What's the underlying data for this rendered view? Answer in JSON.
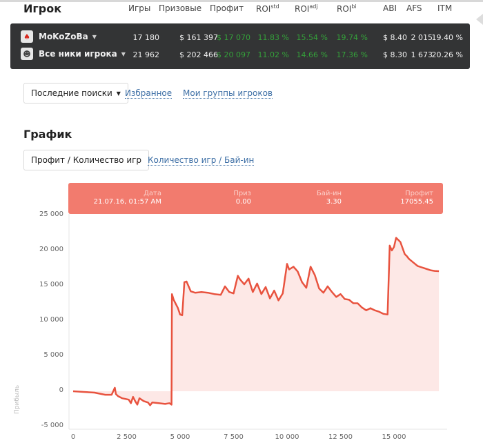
{
  "header": {
    "title": "Игрок",
    "columns": [
      {
        "label": "Игры",
        "sup": ""
      },
      {
        "label": "Призовые",
        "sup": ""
      },
      {
        "label": "Профит",
        "sup": ""
      },
      {
        "label": "ROI",
        "sup": "std"
      },
      {
        "label": "ROI",
        "sup": "adj"
      },
      {
        "label": "ROI",
        "sup": "bi"
      },
      {
        "label": "ABI",
        "sup": ""
      },
      {
        "label": "AFS",
        "sup": ""
      },
      {
        "label": "ITM",
        "sup": ""
      }
    ]
  },
  "players": [
    {
      "nick": "MoKoZoBa",
      "icon": "pokerstars-icon",
      "games": "17 180",
      "prizes": "$ 161 397",
      "profit": "$ 17 070",
      "roi_std": "11.83 %",
      "roi_adj": "15.54 %",
      "roi_bi": "19.74 %",
      "abi": "$ 8.40",
      "afs": "2 015",
      "itm": "19.40 %"
    },
    {
      "nick": "Все ники игрока",
      "icon": "group-icon",
      "games": "21 962",
      "prizes": "$ 202 466",
      "profit": "$ 20 097",
      "roi_std": "11.02 %",
      "roi_adj": "14.66 %",
      "roi_bi": "17.36 %",
      "abi": "$ 8.30",
      "afs": "1 673",
      "itm": "20.26 %"
    }
  ],
  "nav": {
    "recent_searches": "Последние поиски",
    "favorites": "Избранное",
    "my_groups": "Мои группы игроков"
  },
  "graph": {
    "title": "График",
    "tab_active": "Профит / Количество игр",
    "tab_other": "Количество игр / Бай-ин"
  },
  "tooltip": {
    "date_label": "Дата",
    "date_value": "21.07.16, 01:57 AM",
    "prize_label": "Приз",
    "prize_value": "0.00",
    "buyin_label": "Бай-ин",
    "buyin_value": "3.30",
    "profit_label": "Профит",
    "profit_value": "17055.45"
  },
  "colors": {
    "panel_bg": "#333435",
    "profit_green": "#34a13a",
    "line": "#e8533f",
    "area": "#fde8e6",
    "tooltip_bg": "#f27b6e",
    "link": "#3c6ea5"
  },
  "chart_data": {
    "type": "area",
    "title": "",
    "xlabel": "",
    "ylabel": "Прибыль",
    "xlim": [
      0,
      17180
    ],
    "ylim": [
      -5000,
      25000
    ],
    "x_ticks": [
      "0",
      "2 500",
      "5 000",
      "7 500",
      "10 000",
      "12 500",
      "15 000"
    ],
    "y_ticks": [
      "25 000",
      "20 000",
      "15 000",
      "10 000",
      "5 000",
      "0",
      "-5 000"
    ],
    "grid": false,
    "series": [
      {
        "name": "Профит",
        "x": [
          0,
          500,
          1000,
          1500,
          1800,
          1950,
          2000,
          2100,
          2300,
          2600,
          2700,
          2800,
          2900,
          3000,
          3100,
          3300,
          3500,
          3600,
          3700,
          4000,
          4300,
          4500,
          4600,
          4620,
          4700,
          4900,
          5000,
          5100,
          5200,
          5300,
          5500,
          5700,
          6000,
          6300,
          6600,
          6900,
          7100,
          7300,
          7500,
          7700,
          7800,
          8000,
          8200,
          8400,
          8600,
          8800,
          9000,
          9200,
          9400,
          9600,
          9800,
          10000,
          10100,
          10300,
          10500,
          10700,
          10900,
          11100,
          11300,
          11500,
          11700,
          11900,
          12100,
          12300,
          12500,
          12700,
          12900,
          13100,
          13300,
          13500,
          13700,
          13900,
          14100,
          14300,
          14500,
          14700,
          14800,
          14900,
          15000,
          15100,
          15300,
          15500,
          15600,
          15700,
          15900,
          16100,
          16300,
          16500,
          16700,
          16900,
          17100
        ],
        "y": [
          0,
          -100,
          -200,
          -500,
          -500,
          500,
          -400,
          -700,
          -1000,
          -1200,
          -1700,
          -800,
          -1400,
          -1900,
          -1000,
          -1400,
          -1600,
          -2000,
          -1600,
          -1700,
          -1800,
          -1700,
          -1900,
          13800,
          13000,
          11800,
          10900,
          10800,
          15500,
          15600,
          14200,
          14000,
          14100,
          14000,
          13800,
          13700,
          14900,
          14100,
          13900,
          16400,
          15900,
          15200,
          16000,
          14100,
          15300,
          13800,
          14800,
          13200,
          14300,
          12900,
          13900,
          18100,
          17300,
          17700,
          17000,
          15500,
          14700,
          17700,
          16500,
          14600,
          14000,
          14900,
          14100,
          13400,
          13800,
          13100,
          13000,
          12500,
          12500,
          11900,
          11500,
          11800,
          11500,
          11300,
          11000,
          10900,
          20700,
          20000,
          20500,
          21800,
          21200,
          19500,
          19200,
          18800,
          18300,
          17800,
          17600,
          17400,
          17200,
          17100,
          17055
        ]
      }
    ],
    "tooltip_point": {
      "date": "21.07.16, 01:57 AM",
      "prize": 0.0,
      "buyin": 3.3,
      "profit": 17055.45
    }
  }
}
